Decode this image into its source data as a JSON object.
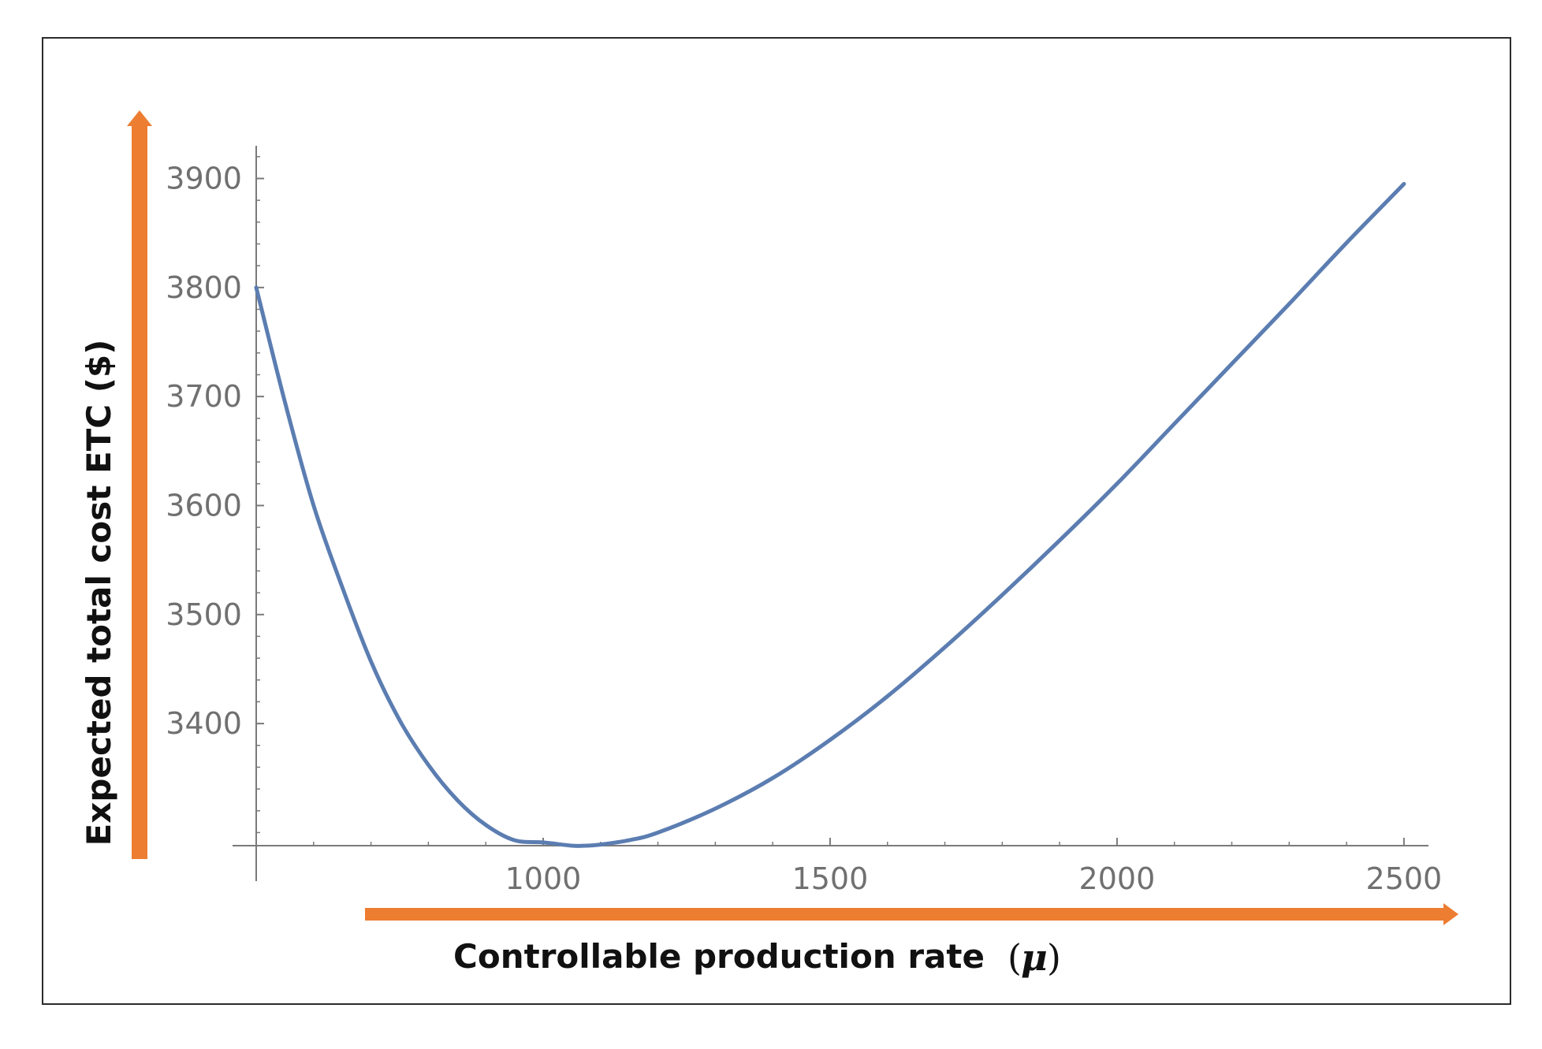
{
  "chart_data": {
    "type": "line",
    "title": "",
    "xlabel": "Controllable production rate",
    "xlabel_symbol": "μ",
    "xlabel_paren_open": "(",
    "xlabel_paren_close": ")",
    "ylabel": "Expected total cost ETC  ($)",
    "xlim": [
      500,
      2540
    ],
    "ylim": [
      3288,
      3930
    ],
    "x_origin": 500,
    "y_origin": 3288,
    "x_ticks": [
      1000,
      1500,
      2000,
      2500
    ],
    "x_tick_labels": [
      "1000",
      "1500",
      "2000",
      "2500"
    ],
    "y_ticks": [
      3400,
      3500,
      3600,
      3700,
      3800,
      3900
    ],
    "y_tick_labels": [
      "3400",
      "3500",
      "3600",
      "3700",
      "3800",
      "3900"
    ],
    "grid": false,
    "series": [
      {
        "name": "ETC",
        "color": "#5b7db1",
        "x": [
          500,
          550,
          600,
          650,
          700,
          750,
          800,
          850,
          900,
          950,
          1000,
          1050,
          1075,
          1100,
          1150,
          1200,
          1300,
          1400,
          1500,
          1600,
          1700,
          1800,
          1900,
          2000,
          2100,
          2200,
          2300,
          2400,
          2500
        ],
        "y": [
          3800,
          3695,
          3600,
          3525,
          3457,
          3403,
          3362,
          3330,
          3307,
          3293,
          3291,
          3288,
          3288,
          3289,
          3293,
          3300,
          3322,
          3350,
          3385,
          3425,
          3470,
          3518,
          3568,
          3620,
          3675,
          3730,
          3785,
          3841,
          3895
        ]
      }
    ]
  },
  "colors": {
    "arrow": "#ed7d31",
    "axis": "#7a7a7a",
    "curve": "#5b7db1"
  }
}
